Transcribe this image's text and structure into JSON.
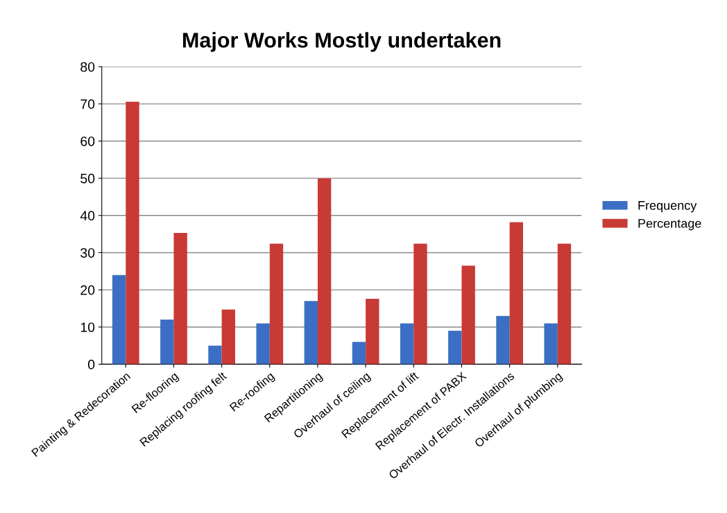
{
  "chart_data": {
    "type": "bar",
    "title": "Major Works Mostly undertaken",
    "categories": [
      "Painting & Redecoration",
      "Re-flooring",
      "Replacing roofing felt",
      "Re-roofing",
      "Repartitioning",
      "Overhaul of ceiling",
      "Replacement of lift",
      "Replacement of PABX",
      "Overhaul of Electr. Installations",
      "Overhaul of plumbing"
    ],
    "series": [
      {
        "name": "Frequency",
        "color": "#3b6fc4",
        "values": [
          24,
          12,
          5,
          11,
          17,
          6,
          11,
          9,
          13,
          11
        ]
      },
      {
        "name": "Percentage",
        "color": "#c83a36",
        "values": [
          70.6,
          35.3,
          14.7,
          32.4,
          50,
          17.6,
          32.4,
          26.5,
          38.2,
          32.4
        ]
      }
    ],
    "ylim": [
      0,
      80
    ],
    "yticks": [
      0,
      10,
      20,
      30,
      40,
      50,
      60,
      70,
      80
    ],
    "grid": "y",
    "legend": "right"
  }
}
